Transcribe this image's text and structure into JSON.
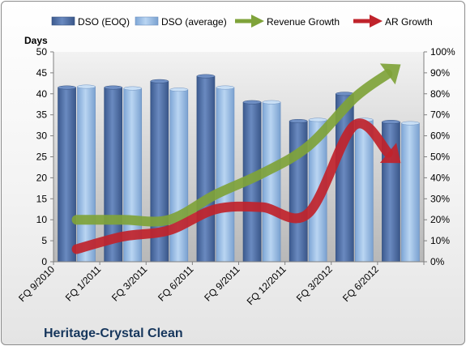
{
  "chart_data": {
    "type": "bar",
    "title": "Heritage-Crystal Clean",
    "ylabel": "Days",
    "y2label": "",
    "ylim": [
      0,
      50
    ],
    "yticks": [
      "0",
      "5",
      "10",
      "15",
      "20",
      "25",
      "30",
      "35",
      "40",
      "45",
      "50"
    ],
    "y2lim": [
      0,
      100
    ],
    "y2ticks": [
      "0%",
      "10%",
      "20%",
      "30%",
      "40%",
      "50%",
      "60%",
      "70%",
      "80%",
      "90%",
      "100%"
    ],
    "categories": [
      "FQ 9/2010",
      "FQ 1/2011",
      "FQ 3/2011",
      "FQ 6/2011",
      "FQ 9/2011",
      "FQ 12/2011",
      "FQ 3/2012",
      "FQ 6/2012"
    ],
    "legend_position": "top",
    "grid": false,
    "series": [
      {
        "name": "DSO (EOQ)",
        "kind": "bar",
        "color": "#4f6fa8",
        "values": [
          41.5,
          41.5,
          43.0,
          44.2,
          38.0,
          33.5,
          40.0,
          33.3
        ]
      },
      {
        "name": "DSO (average)",
        "kind": "bar",
        "color": "#9ec0e6",
        "values": [
          41.7,
          41.3,
          41.0,
          41.5,
          38.0,
          33.8,
          33.8,
          33.0
        ]
      },
      {
        "name": "Revenue Growth",
        "kind": "arrow-line",
        "axis": "secondary",
        "color": "#7fa33a",
        "values": [
          20,
          20,
          20,
          32,
          42,
          55,
          78,
          94
        ]
      },
      {
        "name": "AR Growth",
        "kind": "arrow-line",
        "axis": "secondary",
        "color": "#c0232b",
        "values": [
          6,
          12,
          15,
          25,
          26,
          23,
          65,
          47
        ]
      }
    ]
  }
}
